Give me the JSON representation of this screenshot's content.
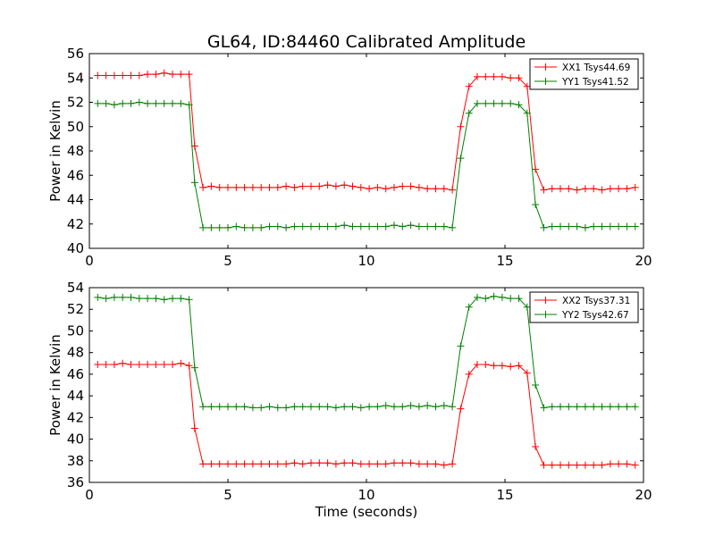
{
  "figure_title": "GL64, ID:84460 Calibrated Amplitude",
  "chart_data": [
    {
      "type": "line",
      "title": "GL64, ID:84460 Calibrated Amplitude",
      "xlabel": "",
      "ylabel": "Power in Kelvin",
      "xlim": [
        0,
        20
      ],
      "ylim": [
        40,
        56
      ],
      "xticks": [
        "0",
        "5",
        "10",
        "15",
        "20"
      ],
      "yticks": [
        "40",
        "42",
        "44",
        "46",
        "48",
        "50",
        "52",
        "54",
        "56"
      ],
      "grid": false,
      "legend_position": "top-right",
      "series": [
        {
          "name": "XX1 Tsys44.69",
          "color": "#ff0000",
          "x": [
            0.3,
            0.6,
            0.9,
            1.2,
            1.5,
            1.8,
            2.1,
            2.4,
            2.7,
            3.0,
            3.3,
            3.6,
            3.8,
            4.1,
            4.4,
            4.7,
            5.0,
            5.3,
            5.6,
            5.9,
            6.2,
            6.5,
            6.8,
            7.1,
            7.4,
            7.7,
            8.0,
            8.3,
            8.6,
            8.9,
            9.2,
            9.5,
            9.8,
            10.1,
            10.4,
            10.7,
            11.0,
            11.3,
            11.6,
            11.9,
            12.2,
            12.5,
            12.8,
            13.1,
            13.4,
            13.7,
            14.0,
            14.3,
            14.6,
            14.9,
            15.2,
            15.5,
            15.8,
            16.1,
            16.4,
            16.7,
            17.0,
            17.3,
            17.6,
            17.9,
            18.2,
            18.5,
            18.8,
            19.1,
            19.4,
            19.7
          ],
          "y": [
            54.2,
            54.2,
            54.2,
            54.2,
            54.2,
            54.2,
            54.3,
            54.3,
            54.4,
            54.3,
            54.3,
            54.3,
            48.4,
            45.0,
            45.1,
            45.0,
            45.0,
            45.0,
            45.0,
            45.0,
            45.0,
            45.0,
            45.0,
            45.1,
            45.0,
            45.1,
            45.1,
            45.1,
            45.2,
            45.1,
            45.2,
            45.1,
            45.0,
            44.9,
            45.0,
            44.9,
            45.0,
            45.1,
            45.1,
            45.0,
            44.9,
            44.9,
            44.9,
            44.8,
            50.0,
            53.3,
            54.1,
            54.1,
            54.1,
            54.1,
            54.0,
            54.0,
            53.3,
            46.5,
            44.8,
            44.9,
            44.9,
            44.9,
            44.8,
            44.9,
            44.9,
            44.8,
            44.9,
            44.9,
            44.9,
            45.0
          ]
        },
        {
          "name": "YY1 Tsys41.52",
          "color": "#008000",
          "x": [
            0.3,
            0.6,
            0.9,
            1.2,
            1.5,
            1.8,
            2.1,
            2.4,
            2.7,
            3.0,
            3.3,
            3.6,
            3.8,
            4.1,
            4.4,
            4.7,
            5.0,
            5.3,
            5.6,
            5.9,
            6.2,
            6.5,
            6.8,
            7.1,
            7.4,
            7.7,
            8.0,
            8.3,
            8.6,
            8.9,
            9.2,
            9.5,
            9.8,
            10.1,
            10.4,
            10.7,
            11.0,
            11.3,
            11.6,
            11.9,
            12.2,
            12.5,
            12.8,
            13.1,
            13.4,
            13.7,
            14.0,
            14.3,
            14.6,
            14.9,
            15.2,
            15.5,
            15.8,
            16.1,
            16.4,
            16.7,
            17.0,
            17.3,
            17.6,
            17.9,
            18.2,
            18.5,
            18.8,
            19.1,
            19.4,
            19.7
          ],
          "y": [
            51.9,
            51.9,
            51.8,
            51.9,
            51.9,
            52.0,
            51.9,
            51.9,
            51.9,
            51.9,
            51.9,
            51.8,
            45.4,
            41.7,
            41.7,
            41.7,
            41.7,
            41.8,
            41.7,
            41.7,
            41.7,
            41.8,
            41.8,
            41.7,
            41.8,
            41.8,
            41.8,
            41.8,
            41.8,
            41.8,
            41.9,
            41.8,
            41.8,
            41.8,
            41.8,
            41.8,
            41.9,
            41.8,
            41.9,
            41.8,
            41.8,
            41.8,
            41.8,
            41.7,
            47.4,
            51.1,
            51.9,
            51.9,
            51.9,
            51.9,
            51.9,
            51.8,
            51.1,
            43.6,
            41.7,
            41.8,
            41.8,
            41.8,
            41.8,
            41.7,
            41.8,
            41.8,
            41.8,
            41.8,
            41.8,
            41.8
          ]
        }
      ]
    },
    {
      "type": "line",
      "title": "",
      "xlabel": "Time (seconds)",
      "ylabel": "Power in Kelvin",
      "xlim": [
        0,
        20
      ],
      "ylim": [
        36,
        54
      ],
      "xticks": [
        "0",
        "5",
        "10",
        "15",
        "20"
      ],
      "yticks": [
        "36",
        "38",
        "40",
        "42",
        "44",
        "46",
        "48",
        "50",
        "52",
        "54"
      ],
      "grid": false,
      "legend_position": "top-right",
      "series": [
        {
          "name": "XX2 Tsys37.31",
          "color": "#ff0000",
          "x": [
            0.3,
            0.6,
            0.9,
            1.2,
            1.5,
            1.8,
            2.1,
            2.4,
            2.7,
            3.0,
            3.3,
            3.6,
            3.8,
            4.1,
            4.4,
            4.7,
            5.0,
            5.3,
            5.6,
            5.9,
            6.2,
            6.5,
            6.8,
            7.1,
            7.4,
            7.7,
            8.0,
            8.3,
            8.6,
            8.9,
            9.2,
            9.5,
            9.8,
            10.1,
            10.4,
            10.7,
            11.0,
            11.3,
            11.6,
            11.9,
            12.2,
            12.5,
            12.8,
            13.1,
            13.4,
            13.7,
            14.0,
            14.3,
            14.6,
            14.9,
            15.2,
            15.5,
            15.8,
            16.1,
            16.4,
            16.7,
            17.0,
            17.3,
            17.6,
            17.9,
            18.2,
            18.5,
            18.8,
            19.1,
            19.4,
            19.7
          ],
          "y": [
            46.9,
            46.9,
            46.9,
            47.0,
            46.9,
            46.9,
            46.9,
            46.9,
            46.9,
            46.9,
            47.0,
            46.8,
            41.0,
            37.7,
            37.7,
            37.7,
            37.7,
            37.7,
            37.7,
            37.7,
            37.7,
            37.7,
            37.7,
            37.7,
            37.8,
            37.7,
            37.8,
            37.8,
            37.8,
            37.7,
            37.8,
            37.8,
            37.7,
            37.7,
            37.7,
            37.7,
            37.8,
            37.8,
            37.8,
            37.7,
            37.7,
            37.7,
            37.6,
            37.7,
            42.8,
            46.0,
            46.9,
            46.9,
            46.8,
            46.8,
            46.7,
            46.8,
            46.1,
            39.3,
            37.6,
            37.6,
            37.6,
            37.6,
            37.6,
            37.6,
            37.6,
            37.6,
            37.7,
            37.7,
            37.7,
            37.6
          ]
        },
        {
          "name": "YY2 Tsys42.67",
          "color": "#008000",
          "x": [
            0.3,
            0.6,
            0.9,
            1.2,
            1.5,
            1.8,
            2.1,
            2.4,
            2.7,
            3.0,
            3.3,
            3.6,
            3.8,
            4.1,
            4.4,
            4.7,
            5.0,
            5.3,
            5.6,
            5.9,
            6.2,
            6.5,
            6.8,
            7.1,
            7.4,
            7.7,
            8.0,
            8.3,
            8.6,
            8.9,
            9.2,
            9.5,
            9.8,
            10.1,
            10.4,
            10.7,
            11.0,
            11.3,
            11.6,
            11.9,
            12.2,
            12.5,
            12.8,
            13.1,
            13.4,
            13.7,
            14.0,
            14.3,
            14.6,
            14.9,
            15.2,
            15.5,
            15.8,
            16.1,
            16.4,
            16.7,
            17.0,
            17.3,
            17.6,
            17.9,
            18.2,
            18.5,
            18.8,
            19.1,
            19.4,
            19.7
          ],
          "y": [
            53.1,
            53.0,
            53.1,
            53.1,
            53.1,
            53.0,
            53.0,
            53.0,
            52.9,
            53.0,
            53.0,
            52.9,
            46.6,
            43.0,
            43.0,
            43.0,
            43.0,
            43.0,
            43.0,
            42.9,
            42.9,
            43.0,
            42.9,
            42.9,
            43.0,
            43.0,
            43.0,
            43.0,
            43.0,
            42.9,
            43.0,
            43.0,
            42.9,
            43.0,
            43.0,
            43.1,
            43.0,
            43.0,
            43.1,
            43.0,
            43.1,
            43.0,
            43.1,
            43.0,
            48.6,
            52.2,
            53.1,
            53.0,
            53.2,
            53.1,
            53.0,
            53.0,
            52.2,
            45.0,
            42.9,
            43.0,
            43.0,
            43.0,
            43.0,
            43.0,
            43.0,
            43.0,
            43.0,
            43.0,
            43.0,
            43.0
          ]
        }
      ]
    }
  ]
}
